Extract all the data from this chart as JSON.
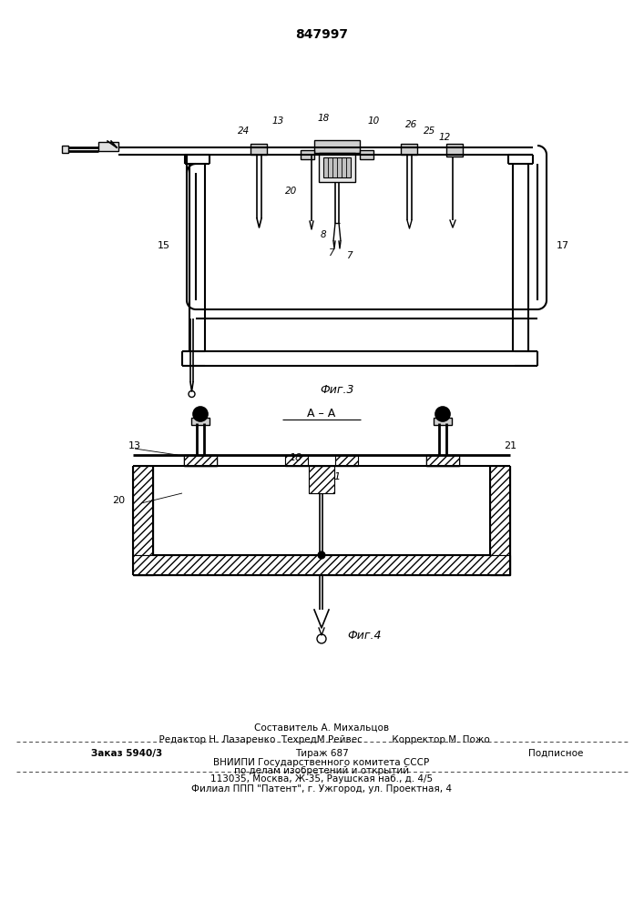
{
  "patent_number": "847997",
  "fig3_label": "Фиг.3",
  "fig4_label": "Фиг.4",
  "section_label": "А – А",
  "footer_line1": "Составитель А. Михальцов",
  "footer_line2": "  Редактор Н. Лазаренко  ТехредМ.Рейвес          Корректор М. Пожо",
  "footer_line3_left": "Заказ 5940/3",
  "footer_line3_mid": "Тираж 687",
  "footer_line3_right": "Подписное",
  "footer_line4": "ВНИИПИ Государственного комитета СССР",
  "footer_line5": "по делам изобретений и открытий",
  "footer_line6": "113035, Москва, Ж-35, Раушская наб., д. 4/5",
  "footer_line7": "Филиал ППП \"Патент\", г. Ужгород, ул. Проектная, 4",
  "bg_color": "#ffffff",
  "line_color": "#000000",
  "text_color": "#000000"
}
